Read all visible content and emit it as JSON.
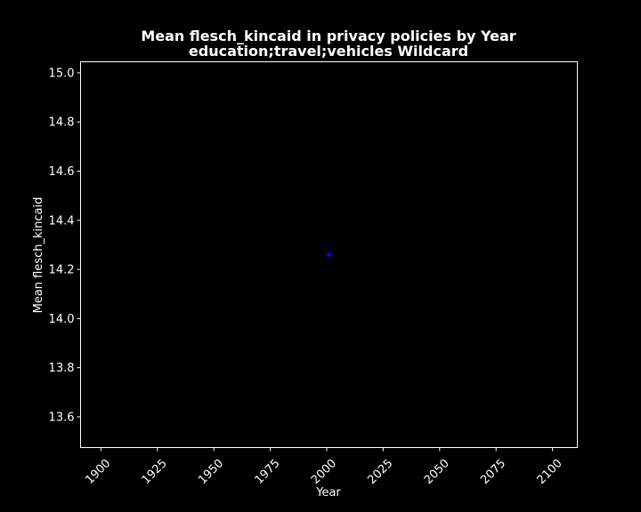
{
  "chart_data": {
    "type": "scatter",
    "title_line1": "Mean flesch_kincaid in privacy policies by Year",
    "title_line2": "education;travel;vehicles Wildcard",
    "xlabel": "Year",
    "ylabel": "Mean flesch_kincaid",
    "xlim": [
      1891,
      2111
    ],
    "ylim": [
      13.475,
      15.045
    ],
    "x_ticks": [
      "1900",
      "1925",
      "1950",
      "1975",
      "2000",
      "2025",
      "2050",
      "2075",
      "2100"
    ],
    "y_ticks": [
      "13.6",
      "13.8",
      "14.0",
      "14.2",
      "14.4",
      "14.6",
      "14.8",
      "15.0"
    ],
    "grid": false,
    "points": [
      {
        "x": 2001,
        "y": 14.26
      }
    ],
    "colors": {
      "background": "#000000",
      "foreground": "#ffffff",
      "point": "#0000ff"
    }
  }
}
